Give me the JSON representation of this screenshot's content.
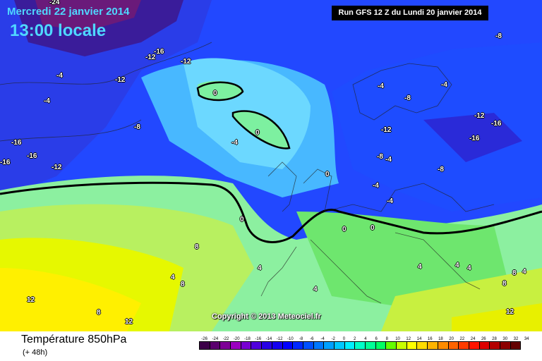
{
  "header": {
    "date": "Mercredi 22 janvier 2014",
    "time": "13:00 locale",
    "run": "Run GFS 12 Z du Lundi 20 janvier 2014"
  },
  "map": {
    "copyright": "Copyright © 2013 Meteociel.fr",
    "isotherm_labels": [
      "-24",
      "-16",
      "-12",
      "-12",
      "-16",
      "-12",
      "-4",
      "-4",
      "-8",
      "-16",
      "-16",
      "-12",
      "-8",
      "-4",
      "0",
      "0",
      "0",
      "0",
      "0",
      "-4",
      "-8",
      "-4",
      "-12",
      "-4",
      "-12",
      "-4",
      "-8",
      "-12",
      "-16",
      "-16",
      "-8",
      "-8",
      "-4",
      "-4",
      "0",
      "4",
      "8",
      "8",
      "4",
      "12",
      "8",
      "12",
      "4",
      "4",
      "4",
      "4",
      "8",
      "4",
      "8",
      "12"
    ]
  },
  "footer": {
    "variable": "Température 850hPa",
    "lead": "(+ 48h)",
    "scale_labels": [
      "-26",
      "-24",
      "-22",
      "-20",
      "-18",
      "-16",
      "-14",
      "-12",
      "-10",
      "-8",
      "-6",
      "-4",
      "-2",
      "0",
      "2",
      "4",
      "6",
      "8",
      "10",
      "12",
      "14",
      "16",
      "18",
      "20",
      "22",
      "24",
      "26",
      "28",
      "30",
      "32",
      "34"
    ],
    "scale_colors": [
      "#3c0048",
      "#5a006e",
      "#7d0096",
      "#9b00c0",
      "#7800d2",
      "#5000dc",
      "#2800e6",
      "#1400f0",
      "#0000ff",
      "#0028ff",
      "#0050ff",
      "#0078ff",
      "#00a0ff",
      "#00c8ff",
      "#00f0ff",
      "#00ffc8",
      "#00ff96",
      "#00ff64",
      "#64ff00",
      "#c8ff00",
      "#ffff00",
      "#ffdc00",
      "#ffb400",
      "#ff8c00",
      "#ff6400",
      "#ff3c00",
      "#ff1400",
      "#dc0000",
      "#b40000",
      "#8c0000",
      "#640000"
    ]
  }
}
